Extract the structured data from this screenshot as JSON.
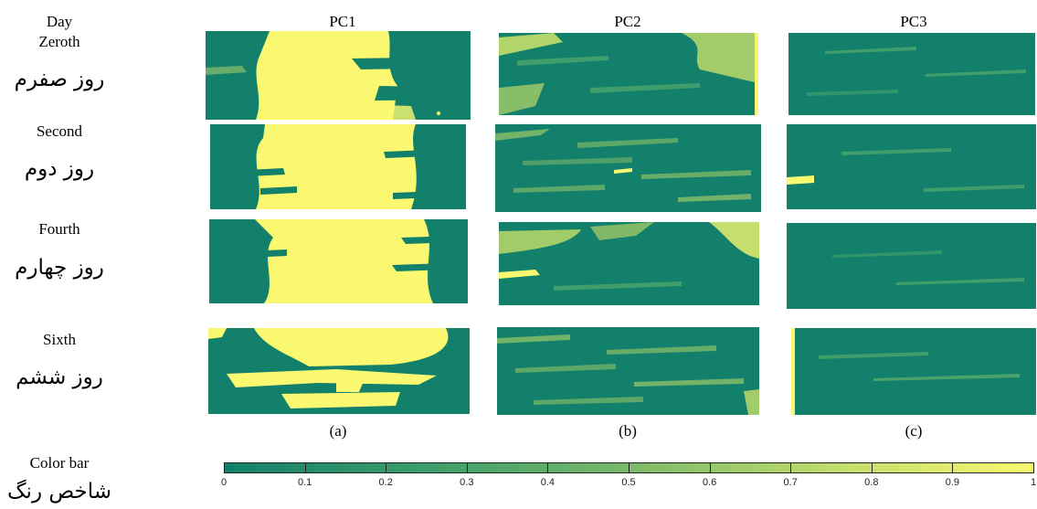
{
  "header": {
    "day_label": "Day",
    "columns": [
      "PC1",
      "PC2",
      "PC3"
    ]
  },
  "rows": [
    {
      "english": "Zeroth",
      "persian": "روز صفرم"
    },
    {
      "english": "Second",
      "persian": "روز دوم"
    },
    {
      "english": "Fourth",
      "persian": "روز چهارم"
    },
    {
      "english": "Sixth",
      "persian": "روز ششم"
    }
  ],
  "sublabels": [
    "(a)",
    "(b)",
    "(c)"
  ],
  "colorbar": {
    "english": "Color bar",
    "persian": "شاخص رنگ",
    "ticks": [
      "0",
      "0.1",
      "0.2",
      "0.3",
      "0.4",
      "0.5",
      "0.6",
      "0.7",
      "0.8",
      "0.9",
      "1"
    ],
    "color_low": "#12806a",
    "color_high": "#f9f870"
  }
}
